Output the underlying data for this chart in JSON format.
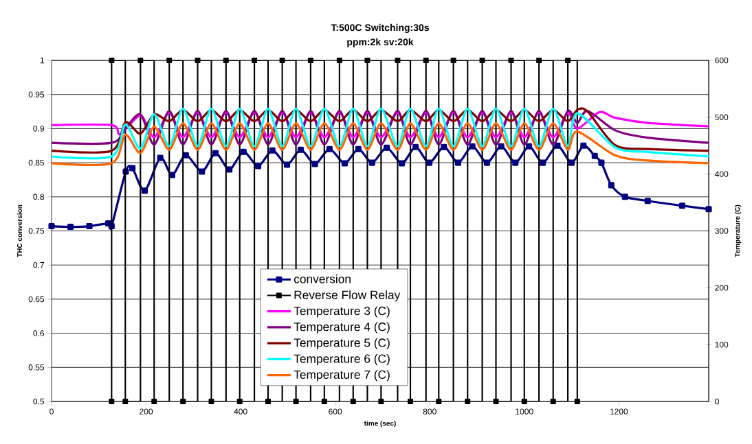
{
  "chart_data": {
    "type": "line",
    "title": "T:500C Switching:30s",
    "subtitle": "ppm:2k sv:20k",
    "xlabel": "time (sec)",
    "ylabel": "THC conversion",
    "y2label": "Temperature (C)",
    "xlim": [
      0,
      1390
    ],
    "xticks": [
      0,
      200,
      400,
      600,
      800,
      1000,
      1200
    ],
    "ylim": [
      0.5,
      1
    ],
    "yticks": [
      0.5,
      0.55,
      0.6,
      0.65,
      0.7,
      0.75,
      0.8,
      0.85,
      0.9,
      0.95,
      1
    ],
    "y2lim": [
      0,
      600
    ],
    "y2ticks": [
      0,
      100,
      200,
      300,
      400,
      500,
      600
    ],
    "grid": "y",
    "legend": "bottom",
    "series": [
      {
        "name": "conversion",
        "color": "#000080",
        "marker": "square",
        "x": [
          0,
          40,
          80,
          120,
          127,
          157,
          171,
          197,
          230,
          255,
          284,
          318,
          347,
          376,
          406,
          437,
          467,
          498,
          527,
          557,
          588,
          620,
          649,
          678,
          709,
          741,
          770,
          799,
          830,
          860,
          890,
          921,
          951,
          981,
          1010,
          1039,
          1070,
          1100,
          1125,
          1149,
          1163,
          1184,
          1213,
          1261,
          1334,
          1390
        ],
        "values": [
          0.757,
          0.756,
          0.757,
          0.761,
          0.757,
          0.837,
          0.842,
          0.809,
          0.857,
          0.832,
          0.861,
          0.837,
          0.864,
          0.84,
          0.866,
          0.845,
          0.868,
          0.847,
          0.869,
          0.848,
          0.87,
          0.849,
          0.87,
          0.85,
          0.872,
          0.849,
          0.873,
          0.85,
          0.873,
          0.85,
          0.874,
          0.85,
          0.874,
          0.85,
          0.874,
          0.85,
          0.875,
          0.85,
          0.875,
          0.86,
          0.85,
          0.817,
          0.8,
          0.794,
          0.787,
          0.782
        ]
      },
      {
        "name": "Reverse Flow Relay",
        "color": "#000000",
        "type": "step",
        "axis": "y2",
        "marker": "square",
        "x": [
          127,
          127,
          156,
          188,
          217,
          249,
          278,
          309,
          338,
          369,
          398,
          429,
          458,
          488,
          517,
          548,
          577,
          609,
          638,
          668,
          697,
          732,
          759,
          792,
          819,
          850,
          880,
          911,
          940,
          972,
          1000,
          1031,
          1061,
          1092,
          1112
        ],
        "values": [
          0,
          600,
          0,
          600,
          0,
          600,
          0,
          600,
          0,
          600,
          0,
          600,
          0,
          600,
          0,
          600,
          0,
          600,
          0,
          600,
          0,
          600,
          0,
          600,
          0,
          600,
          0,
          600,
          0,
          600,
          0,
          600,
          0,
          600,
          0
        ]
      },
      {
        "name": "Temperature 3 (C)",
        "color": "#ff00ff",
        "axis": "y2",
        "marker": "none",
        "x": [
          0,
          127,
          145,
          188,
          217,
          249,
          278,
          309,
          338,
          369,
          398,
          429,
          458,
          488,
          517,
          548,
          577,
          609,
          638,
          668,
          697,
          732,
          759,
          792,
          819,
          850,
          880,
          911,
          940,
          972,
          1000,
          1031,
          1061,
          1092,
          1112,
          1159,
          1192,
          1261,
          1390
        ],
        "values": [
          486,
          486,
          470,
          503,
          465,
          508,
          465,
          508,
          465,
          508,
          465,
          508,
          465,
          508,
          465,
          508,
          465,
          508,
          465,
          508,
          465,
          508,
          465,
          508,
          465,
          508,
          465,
          508,
          465,
          508,
          465,
          508,
          465,
          508,
          480,
          509,
          499,
          490,
          484
        ]
      },
      {
        "name": "Temperature 4 (C)",
        "color": "#800080",
        "axis": "y2",
        "marker": "none",
        "x": [
          0,
          127,
          156,
          188,
          217,
          249,
          278,
          309,
          338,
          369,
          398,
          429,
          458,
          488,
          517,
          548,
          577,
          609,
          638,
          668,
          697,
          732,
          759,
          792,
          819,
          850,
          880,
          911,
          940,
          972,
          1000,
          1031,
          1061,
          1092,
          1112,
          1134,
          1192,
          1261,
          1390
        ],
        "values": [
          455,
          455,
          480,
          505,
          452,
          511,
          452,
          511,
          452,
          511,
          452,
          511,
          452,
          511,
          452,
          511,
          452,
          511,
          452,
          511,
          452,
          511,
          452,
          511,
          452,
          511,
          452,
          511,
          452,
          511,
          452,
          511,
          452,
          511,
          490,
          511,
          477,
          464,
          455
        ]
      },
      {
        "name": "Temperature 5 (C)",
        "color": "#800000",
        "axis": "y2",
        "marker": "none",
        "x": [
          0,
          127,
          156,
          188,
          217,
          249,
          278,
          309,
          338,
          369,
          398,
          429,
          458,
          488,
          517,
          548,
          577,
          609,
          638,
          668,
          697,
          732,
          759,
          792,
          819,
          850,
          880,
          911,
          940,
          972,
          1000,
          1031,
          1061,
          1092,
          1112,
          1134,
          1192,
          1261,
          1390
        ],
        "values": [
          441,
          441,
          491,
          471,
          505,
          493,
          513,
          493,
          513,
          493,
          513,
          493,
          513,
          493,
          513,
          493,
          513,
          493,
          513,
          493,
          513,
          493,
          513,
          493,
          513,
          493,
          513,
          493,
          513,
          493,
          513,
          493,
          513,
          493,
          513,
          510,
          451,
          444,
          441
        ]
      },
      {
        "name": "Temperature 6 (C)",
        "color": "#00ffff",
        "axis": "y2",
        "marker": "none",
        "x": [
          0,
          127,
          156,
          188,
          217,
          249,
          278,
          309,
          338,
          369,
          398,
          429,
          458,
          488,
          517,
          548,
          577,
          609,
          638,
          668,
          697,
          732,
          759,
          792,
          819,
          850,
          880,
          911,
          940,
          972,
          1000,
          1031,
          1061,
          1092,
          1112,
          1192,
          1261,
          1390
        ],
        "values": [
          431,
          431,
          487,
          445,
          505,
          449,
          515,
          449,
          515,
          449,
          515,
          449,
          515,
          449,
          515,
          449,
          515,
          449,
          515,
          449,
          515,
          449,
          515,
          449,
          515,
          449,
          515,
          449,
          515,
          449,
          515,
          449,
          515,
          449,
          507,
          447,
          439,
          431
        ]
      },
      {
        "name": "Temperature 7 (C)",
        "color": "#ff6600",
        "axis": "y2",
        "marker": "none",
        "x": [
          0,
          127,
          156,
          188,
          217,
          249,
          278,
          309,
          338,
          369,
          398,
          429,
          458,
          488,
          517,
          548,
          577,
          609,
          638,
          668,
          697,
          732,
          759,
          792,
          819,
          850,
          880,
          911,
          940,
          972,
          1000,
          1031,
          1061,
          1092,
          1112,
          1192,
          1261,
          1390
        ],
        "values": [
          419,
          419,
          469,
          437,
          483,
          443,
          489,
          443,
          489,
          443,
          489,
          443,
          489,
          443,
          489,
          443,
          489,
          443,
          489,
          443,
          489,
          443,
          489,
          443,
          489,
          443,
          489,
          443,
          489,
          443,
          489,
          443,
          489,
          443,
          475,
          433,
          424,
          419
        ]
      }
    ]
  }
}
